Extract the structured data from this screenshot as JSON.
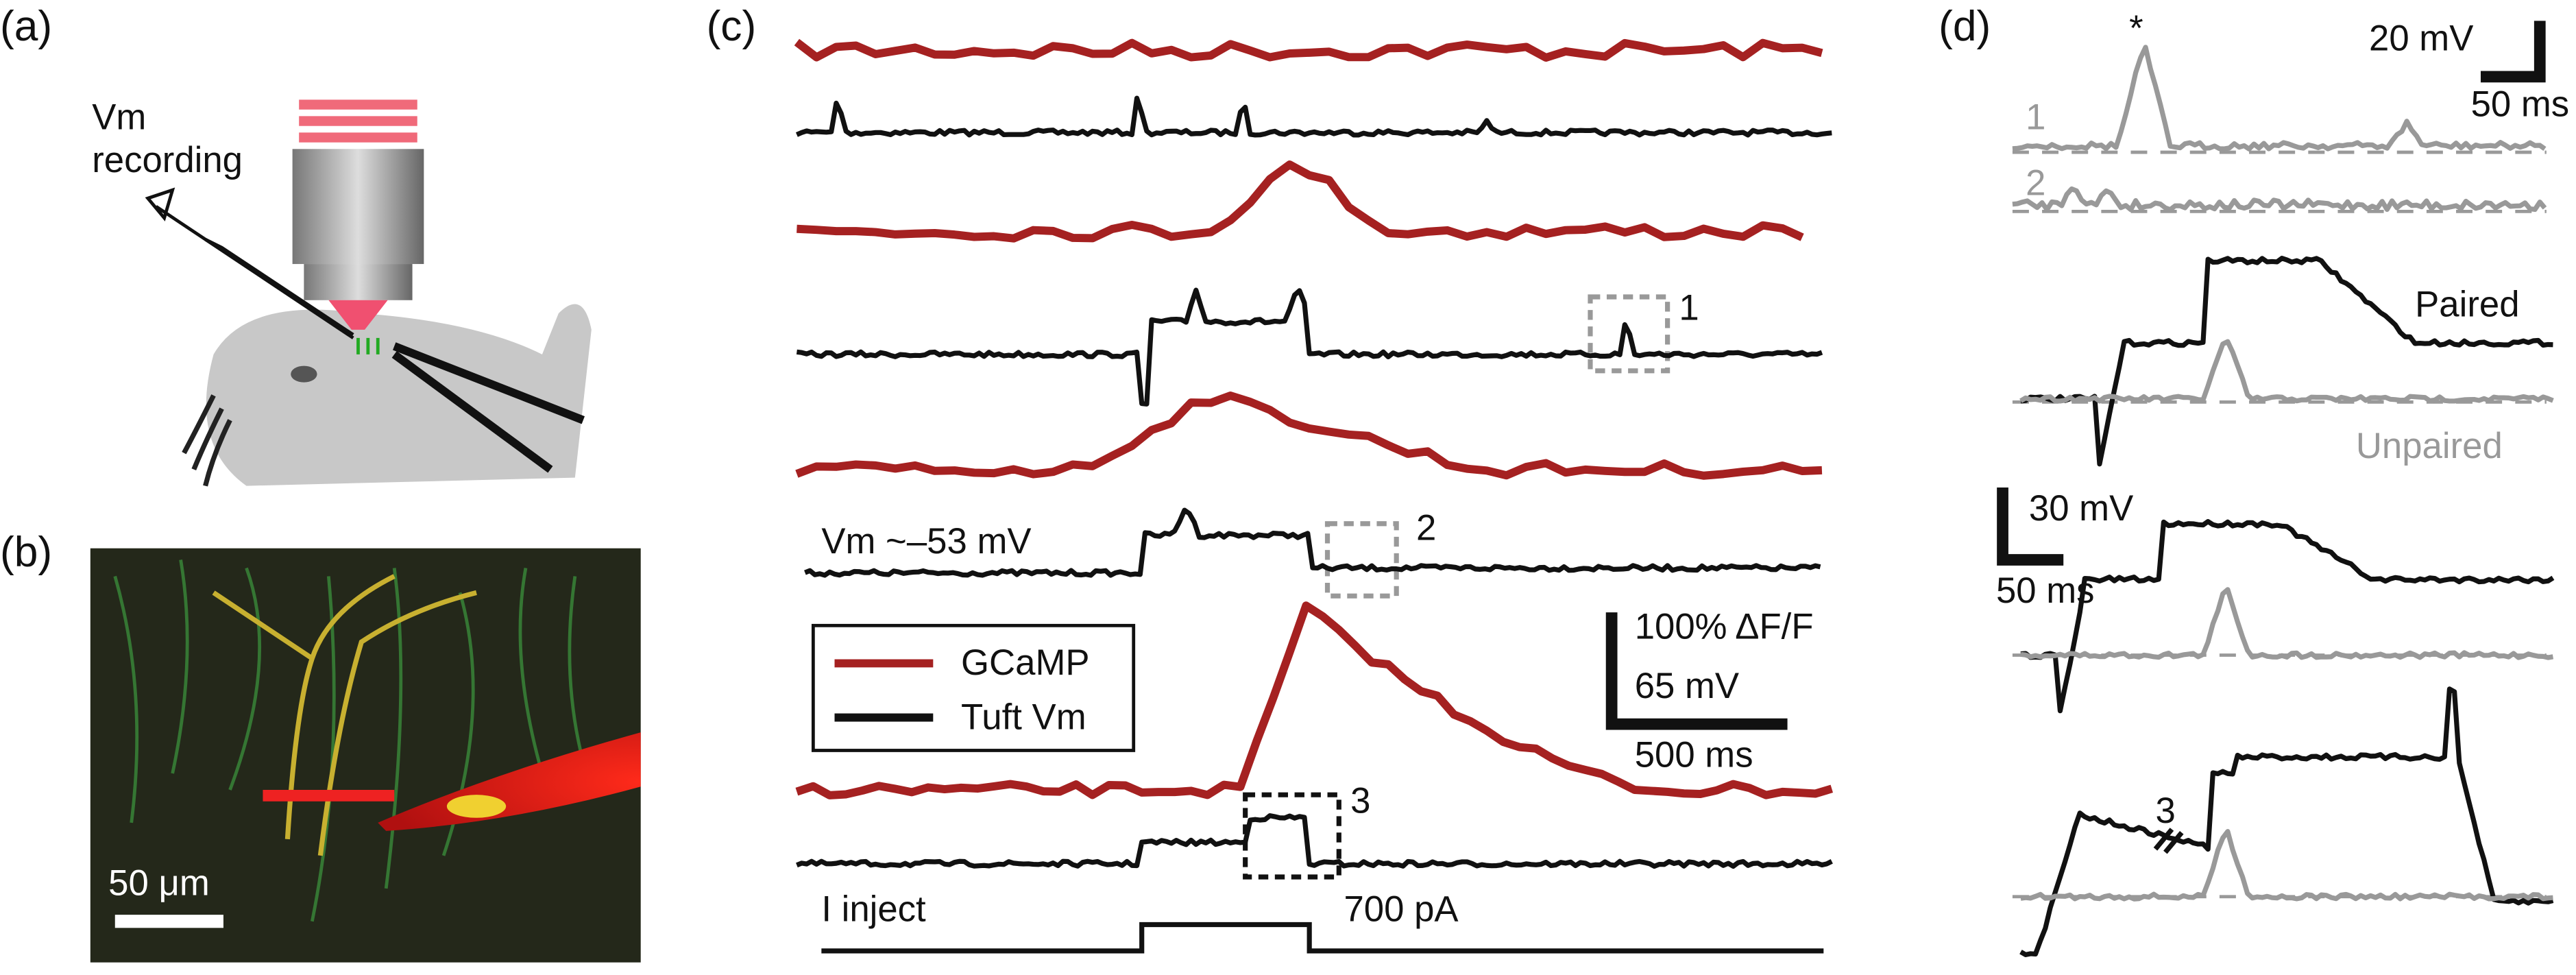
{
  "panel_a": {
    "label": "(a)",
    "annotation": [
      "Vm",
      "recording"
    ]
  },
  "panel_b": {
    "label": "(b)",
    "scale_bar": "50 μm"
  },
  "panel_c": {
    "label": "(c)",
    "boxes": [
      "1",
      "2",
      "3"
    ],
    "resting": "Vm ~–53 mV",
    "legend": [
      "GCaMP",
      "Tuft Vm"
    ],
    "scale": [
      "100% ΔF/F",
      "65 mV",
      "500 ms"
    ],
    "stimulus": "I inject",
    "current": "700 pA"
  },
  "panel_d": {
    "label": "(d)",
    "peak_marker": "*",
    "scale_top": [
      "20 mV",
      "50 ms"
    ],
    "traces": [
      "1",
      "2"
    ],
    "paired": "Paired",
    "unpaired": "Unpaired",
    "scale_mid": [
      "30 mV",
      "50 ms"
    ],
    "break_label": "3"
  }
}
